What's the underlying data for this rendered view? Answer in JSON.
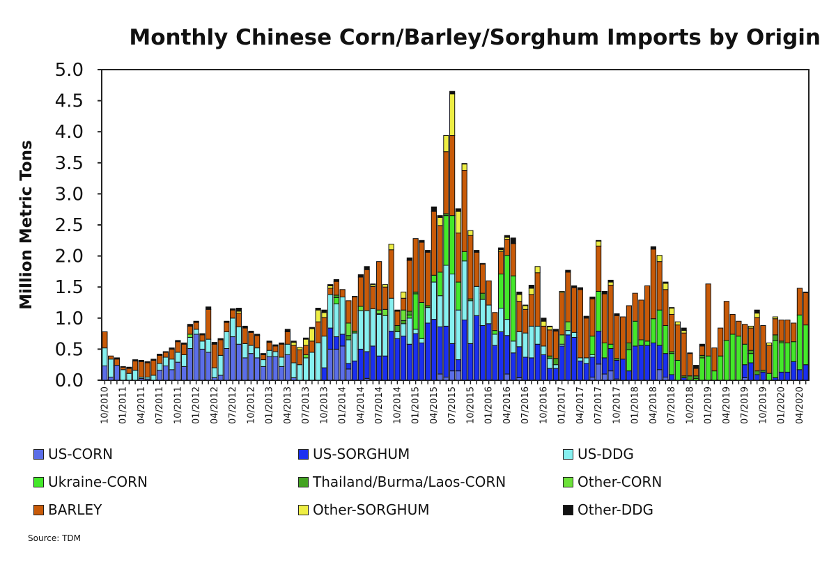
{
  "chart_data": {
    "type": "bar",
    "stacked": true,
    "title": "Monthly Chinese Corn/Barley/Sorghum Imports by Origin",
    "ylabel": "Million Metric Tons",
    "xlabel": "",
    "ylim": [
      0,
      5.0
    ],
    "yticks": [
      "0.0",
      "0.5",
      "1.0",
      "1.5",
      "2.0",
      "2.5",
      "3.0",
      "3.5",
      "4.0",
      "4.5",
      "5.0"
    ],
    "grid": false,
    "legend_placement": "bottom",
    "source": "Source: TDM",
    "series": [
      {
        "name": "US-CORN",
        "color": "#5b6ee8"
      },
      {
        "name": "US-SORGHUM",
        "color": "#1a2ff0"
      },
      {
        "name": "US-DDG",
        "color": "#86f0f0"
      },
      {
        "name": "Ukraine-CORN",
        "color": "#44e82a"
      },
      {
        "name": "Thailand/Burma/Laos-CORN",
        "color": "#44a322"
      },
      {
        "name": "Other-CORN",
        "color": "#6de23a"
      },
      {
        "name": "BARLEY",
        "color": "#c85a08"
      },
      {
        "name": "Other-SORGHUM",
        "color": "#eeee44"
      },
      {
        "name": "Other-DDG",
        "color": "#111111"
      }
    ],
    "categories": [
      "10/2010",
      "11/2010",
      "12/2010",
      "01/2011",
      "02/2011",
      "03/2011",
      "04/2011",
      "05/2011",
      "06/2011",
      "07/2011",
      "08/2011",
      "09/2011",
      "10/2011",
      "11/2011",
      "12/2011",
      "01/2012",
      "02/2012",
      "03/2012",
      "04/2012",
      "05/2012",
      "06/2012",
      "07/2012",
      "08/2012",
      "09/2012",
      "10/2012",
      "11/2012",
      "12/2012",
      "01/2013",
      "02/2013",
      "03/2013",
      "04/2013",
      "05/2013",
      "06/2013",
      "07/2013",
      "08/2013",
      "09/2013",
      "10/2013",
      "11/2013",
      "12/2013",
      "01/2014",
      "02/2014",
      "03/2014",
      "04/2014",
      "05/2014",
      "06/2014",
      "07/2014",
      "08/2014",
      "09/2014",
      "10/2014",
      "11/2014",
      "12/2014",
      "01/2015",
      "02/2015",
      "03/2015",
      "04/2015",
      "05/2015",
      "06/2015",
      "07/2015",
      "08/2015",
      "09/2015",
      "10/2015",
      "11/2015",
      "12/2015",
      "01/2016",
      "02/2016",
      "03/2016",
      "04/2016",
      "05/2016",
      "06/2016",
      "07/2016",
      "08/2016",
      "09/2016",
      "10/2016",
      "11/2016",
      "12/2016",
      "01/2017",
      "02/2017",
      "03/2017",
      "04/2017",
      "05/2017",
      "06/2017",
      "07/2017",
      "08/2017",
      "09/2017",
      "10/2017",
      "11/2017",
      "12/2017",
      "01/2018",
      "02/2018",
      "03/2018",
      "04/2018",
      "05/2018",
      "06/2018",
      "07/2018",
      "08/2018",
      "09/2018",
      "10/2018",
      "11/2018",
      "12/2018",
      "01/2019",
      "02/2019",
      "03/2019",
      "04/2019",
      "05/2019",
      "06/2019",
      "07/2019",
      "08/2019",
      "09/2019",
      "10/2019",
      "11/2019",
      "12/2019",
      "01/2020",
      "02/2020",
      "03/2020",
      "04/2020",
      "05/2020"
    ],
    "tick_every": 3,
    "values_by_month": [
      [
        0.23,
        0,
        0.29,
        0,
        0,
        0,
        0.26,
        0,
        0
      ],
      [
        0.05,
        0,
        0.29,
        0,
        0,
        0,
        0.05,
        0,
        0
      ],
      [
        0.24,
        0,
        0,
        0,
        0,
        0,
        0.1,
        0,
        0.02
      ],
      [
        0,
        0,
        0.17,
        0,
        0,
        0,
        0.04,
        0,
        0.01
      ],
      [
        0,
        0,
        0.11,
        0,
        0,
        0,
        0.08,
        0,
        0.02
      ],
      [
        0,
        0,
        0.16,
        0,
        0,
        0,
        0.15,
        0,
        0.02
      ],
      [
        0.03,
        0,
        0.02,
        0,
        0,
        0,
        0.25,
        0,
        0.02
      ],
      [
        0.02,
        0,
        0.03,
        0,
        0,
        0,
        0.23,
        0,
        0.02
      ],
      [
        0,
        0,
        0.08,
        0,
        0,
        0,
        0.24,
        0,
        0.02
      ],
      [
        0.16,
        0,
        0.11,
        0,
        0,
        0,
        0.13,
        0,
        0.02
      ],
      [
        0.23,
        0,
        0.14,
        0,
        0,
        0,
        0.08,
        0,
        0.01
      ],
      [
        0.17,
        0,
        0.17,
        0,
        0,
        0,
        0.16,
        0,
        0.02
      ],
      [
        0.29,
        0,
        0.16,
        0,
        0,
        0,
        0.17,
        0,
        0.02
      ],
      [
        0.22,
        0,
        0.19,
        0,
        0,
        0,
        0.17,
        0,
        0.02
      ],
      [
        0.51,
        0,
        0.18,
        0,
        0,
        0.05,
        0.13,
        0,
        0.03
      ],
      [
        0.74,
        0,
        0.08,
        0,
        0,
        0,
        0.11,
        0,
        0.02
      ],
      [
        0.5,
        0,
        0.13,
        0,
        0,
        0,
        0.1,
        0,
        0.02
      ],
      [
        0.45,
        0,
        0.21,
        0,
        0,
        0,
        0.48,
        0,
        0.04
      ],
      [
        0.04,
        0,
        0.16,
        0,
        0,
        0,
        0.38,
        0,
        0.03
      ],
      [
        0.08,
        0,
        0.32,
        0,
        0,
        0,
        0.25,
        0,
        0.02
      ],
      [
        0.51,
        0,
        0.27,
        0,
        0,
        0,
        0.15,
        0,
        0.02
      ],
      [
        0.7,
        0,
        0.3,
        0,
        0,
        0,
        0.13,
        0,
        0.02
      ],
      [
        0.58,
        0,
        0.28,
        0,
        0,
        0,
        0.22,
        0.03,
        0.05
      ],
      [
        0.36,
        0,
        0.23,
        0,
        0,
        0,
        0.25,
        0.01,
        0.02
      ],
      [
        0.43,
        0,
        0.13,
        0,
        0,
        0,
        0.21,
        0,
        0.02
      ],
      [
        0.36,
        0,
        0.16,
        0,
        0,
        0,
        0.2,
        0,
        0.02
      ],
      [
        0.22,
        0,
        0.11,
        0,
        0,
        0,
        0.08,
        0,
        0.02
      ],
      [
        0.38,
        0,
        0.1,
        0,
        0,
        0,
        0.13,
        0,
        0.02
      ],
      [
        0.38,
        0,
        0.08,
        0,
        0,
        0,
        0.09,
        0,
        0.02
      ],
      [
        0.22,
        0,
        0.15,
        0,
        0,
        0,
        0.21,
        0,
        0.02
      ],
      [
        0.41,
        0,
        0.17,
        0,
        0,
        0,
        0.2,
        0,
        0.04
      ],
      [
        0.04,
        0,
        0.24,
        0,
        0,
        0,
        0.28,
        0.05,
        0.02
      ],
      [
        0,
        0,
        0.25,
        0,
        0,
        0,
        0.24,
        0.04,
        0
      ],
      [
        0,
        0,
        0.36,
        0,
        0,
        0.05,
        0.15,
        0.1,
        0.02
      ],
      [
        0,
        0,
        0.45,
        0,
        0,
        0,
        0.18,
        0.2,
        0.02
      ],
      [
        0,
        0,
        0.6,
        0,
        0,
        0,
        0.34,
        0.19,
        0.03
      ],
      [
        0,
        0.2,
        0.51,
        0,
        0,
        0,
        0.3,
        0.08,
        0.04
      ],
      [
        0.5,
        0.34,
        0.54,
        0,
        0,
        0,
        0.1,
        0.04,
        0.02
      ],
      [
        0.5,
        0.2,
        0.53,
        0.1,
        0.04,
        0,
        0.22,
        0,
        0.03
      ],
      [
        0.55,
        0.19,
        0.6,
        0,
        0,
        0,
        0.12,
        0,
        0
      ],
      [
        0.18,
        0.09,
        0.38,
        0,
        0.07,
        0.2,
        0.36,
        0,
        0
      ],
      [
        0,
        0.31,
        0.45,
        0,
        0.03,
        0,
        0.55,
        0,
        0.01
      ],
      [
        0,
        0.5,
        0.62,
        0,
        0,
        0.07,
        0.47,
        0,
        0.04
      ],
      [
        0.03,
        0.43,
        0.66,
        0,
        0,
        0,
        0.66,
        0,
        0.05
      ],
      [
        0,
        0.55,
        0.6,
        0,
        0,
        0,
        0.36,
        0.03,
        0.01
      ],
      [
        0,
        0.39,
        0.67,
        0,
        0.01,
        0.06,
        0.78,
        0,
        0
      ],
      [
        0,
        0.39,
        0.65,
        0,
        0,
        0.1,
        0.36,
        0.04,
        0
      ],
      [
        0,
        0.79,
        0.53,
        0,
        0,
        0,
        0.78,
        0.09,
        0
      ],
      [
        0,
        0.67,
        0.11,
        0,
        0.1,
        0,
        0.23,
        0,
        0.02
      ],
      [
        0,
        0.71,
        0.2,
        0,
        0.05,
        0.17,
        0.19,
        0.1,
        0
      ],
      [
        0,
        0.58,
        0.42,
        0.05,
        0.06,
        0,
        0.82,
        0,
        0.04
      ],
      [
        0,
        0.75,
        0.07,
        0.57,
        0.03,
        0,
        0.86,
        0,
        0
      ],
      [
        0,
        0.6,
        0.07,
        0.58,
        0,
        0,
        0.97,
        0,
        0.03
      ],
      [
        0,
        0.92,
        0.25,
        0,
        0.03,
        0,
        0.86,
        0,
        0.03
      ],
      [
        0,
        0.98,
        0.6,
        0.11,
        0,
        0,
        1.03,
        0,
        0.07
      ],
      [
        0.1,
        0.76,
        0.5,
        0.38,
        0,
        0,
        0.75,
        0.13,
        0.03
      ],
      [
        0.05,
        0.82,
        0.98,
        0.8,
        0.03,
        0,
        1.0,
        0.26,
        0
      ],
      [
        0.15,
        0.44,
        1.12,
        0.94,
        0,
        0,
        1.29,
        0.67,
        0.04
      ],
      [
        0.15,
        0.18,
        0.8,
        0.45,
        0,
        0,
        0.79,
        0.35,
        0.04
      ],
      [
        0,
        0.97,
        0.95,
        0.15,
        0,
        0,
        1.31,
        0.1,
        0.01
      ],
      [
        0,
        0.59,
        0.69,
        0,
        0.03,
        0,
        1.02,
        0.08,
        0
      ],
      [
        0,
        1.04,
        0.47,
        0,
        0,
        0,
        0.55,
        0,
        0.03
      ],
      [
        0,
        0.88,
        0.42,
        0,
        0.1,
        0,
        0.47,
        0,
        0.01
      ],
      [
        0,
        0.91,
        0.3,
        0,
        0,
        0,
        0.39,
        0,
        0
      ],
      [
        0,
        0.56,
        0.18,
        0.06,
        0,
        0,
        0.29,
        0,
        0
      ],
      [
        0,
        0.78,
        0.38,
        0.55,
        0,
        0,
        0.36,
        0.03,
        0.03
      ],
      [
        0.1,
        0.62,
        0.26,
        1.03,
        0,
        0,
        0.26,
        0.03,
        0.03
      ],
      [
        0,
        0.44,
        0.19,
        1.05,
        0,
        0,
        0.52,
        0,
        0.09
      ],
      [
        0.04,
        0.5,
        0.24,
        0,
        0,
        0,
        0.49,
        0.11,
        0.04
      ],
      [
        0,
        0.37,
        0.39,
        0,
        0,
        0,
        0.38,
        0.06,
        0.01
      ],
      [
        0,
        0.36,
        0.51,
        0,
        0,
        0,
        0.51,
        0.1,
        0.05
      ],
      [
        0,
        0.58,
        0.29,
        0,
        0,
        0,
        0.86,
        0.1,
        0
      ],
      [
        0,
        0.41,
        0.14,
        0,
        0,
        0,
        0.32,
        0.08,
        0.05
      ],
      [
        0,
        0.19,
        0.16,
        0,
        0.04,
        0,
        0.42,
        0.05,
        0.01
      ],
      [
        0,
        0.19,
        0.06,
        0,
        0.1,
        0,
        0.44,
        0,
        0.03
      ],
      [
        0,
        0.55,
        0.03,
        0,
        0,
        0.15,
        0.68,
        0.02,
        0
      ],
      [
        0,
        0.73,
        0.07,
        0,
        0,
        0.14,
        0.8,
        0,
        0.03
      ],
      [
        0,
        0.69,
        0.08,
        0,
        0,
        0,
        0.72,
        0,
        0.03
      ],
      [
        0,
        0.31,
        0.05,
        0,
        0,
        0,
        1.1,
        0,
        0.03
      ],
      [
        0,
        0.27,
        0.09,
        0,
        0,
        0,
        0.64,
        0,
        0.03
      ],
      [
        0.05,
        0.32,
        0.04,
        0.3,
        0,
        0,
        0.6,
        0,
        0.03
      ],
      [
        0.26,
        0.53,
        0,
        0.64,
        0,
        0,
        0.73,
        0.08,
        0.01
      ],
      [
        0.1,
        0.26,
        0,
        0.24,
        0,
        0,
        0.79,
        0,
        0.04
      ],
      [
        0.15,
        0.36,
        0,
        0.07,
        0,
        0,
        0.95,
        0.05,
        0.03
      ],
      [
        0.02,
        0.3,
        0,
        0,
        0.03,
        0,
        0.69,
        0,
        0.03
      ],
      [
        0,
        0.34,
        0,
        0,
        0,
        0,
        0.68,
        0,
        0
      ],
      [
        0,
        0.15,
        0,
        0.34,
        0.11,
        0,
        0.6,
        0,
        0
      ],
      [
        0,
        0.55,
        0,
        0.4,
        0,
        0,
        0.45,
        0,
        0
      ],
      [
        0,
        0.56,
        0,
        0.09,
        0,
        0,
        0.64,
        0,
        0
      ],
      [
        0,
        0.56,
        0,
        0.07,
        0,
        0,
        0.89,
        0,
        0
      ],
      [
        0,
        0.6,
        0,
        0.39,
        0,
        0,
        1.12,
        0,
        0.04
      ],
      [
        0.17,
        0.39,
        0,
        0.57,
        0,
        0,
        0.78,
        0.1,
        0
      ],
      [
        0.05,
        0.38,
        0,
        0.45,
        0,
        0,
        0.58,
        0.1,
        0.02
      ],
      [
        0,
        0.09,
        0,
        0.34,
        0.03,
        0,
        0.6,
        0.1,
        0.01
      ],
      [
        0,
        0,
        0,
        0.32,
        0,
        0,
        0.57,
        0.05,
        0
      ],
      [
        0,
        0.04,
        0,
        0,
        0.03,
        0,
        0.69,
        0.04,
        0.04
      ],
      [
        0,
        0,
        0,
        0,
        0.07,
        0,
        0.36,
        0,
        0.01
      ],
      [
        0,
        0,
        0,
        0.03,
        0.04,
        0,
        0.12,
        0,
        0.05
      ],
      [
        0,
        0,
        0,
        0.36,
        0.04,
        0,
        0.15,
        0,
        0.03
      ],
      [
        0,
        0,
        0,
        0.39,
        0,
        0,
        1.16,
        0,
        0
      ],
      [
        0,
        0,
        0,
        0.15,
        0,
        0,
        0.37,
        0,
        0
      ],
      [
        0,
        0,
        0,
        0.39,
        0,
        0,
        0.45,
        0,
        0
      ],
      [
        0,
        0,
        0,
        0.64,
        0,
        0,
        0.63,
        0,
        0
      ],
      [
        0,
        0,
        0,
        0.74,
        0,
        0,
        0.32,
        0,
        0
      ],
      [
        0,
        0,
        0,
        0.71,
        0,
        0,
        0.24,
        0,
        0
      ],
      [
        0.04,
        0.21,
        0,
        0.33,
        0,
        0,
        0.32,
        0,
        0
      ],
      [
        0,
        0.28,
        0,
        0.15,
        0.05,
        0,
        0.36,
        0.03,
        0
      ],
      [
        0,
        0.09,
        0,
        0,
        0.06,
        0,
        0.86,
        0.07,
        0.05
      ],
      [
        0,
        0.13,
        0,
        0,
        0.03,
        0,
        0.72,
        0,
        0
      ],
      [
        0,
        0,
        0,
        0.11,
        0,
        0,
        0.45,
        0.04,
        0
      ],
      [
        0,
        0.04,
        0,
        0.6,
        0.09,
        0,
        0.26,
        0.03,
        0
      ],
      [
        0,
        0.13,
        0,
        0.47,
        0.03,
        0,
        0.34,
        0,
        0
      ],
      [
        0,
        0.13,
        0,
        0.47,
        0,
        0,
        0.37,
        0,
        0
      ],
      [
        0,
        0.3,
        0,
        0.32,
        0,
        0,
        0.3,
        0,
        0
      ],
      [
        0,
        0.17,
        0,
        0.88,
        0,
        0,
        0.43,
        0,
        0
      ],
      [
        0,
        0.25,
        0,
        0.64,
        0,
        0,
        0.52,
        0,
        0.01
      ]
    ]
  }
}
